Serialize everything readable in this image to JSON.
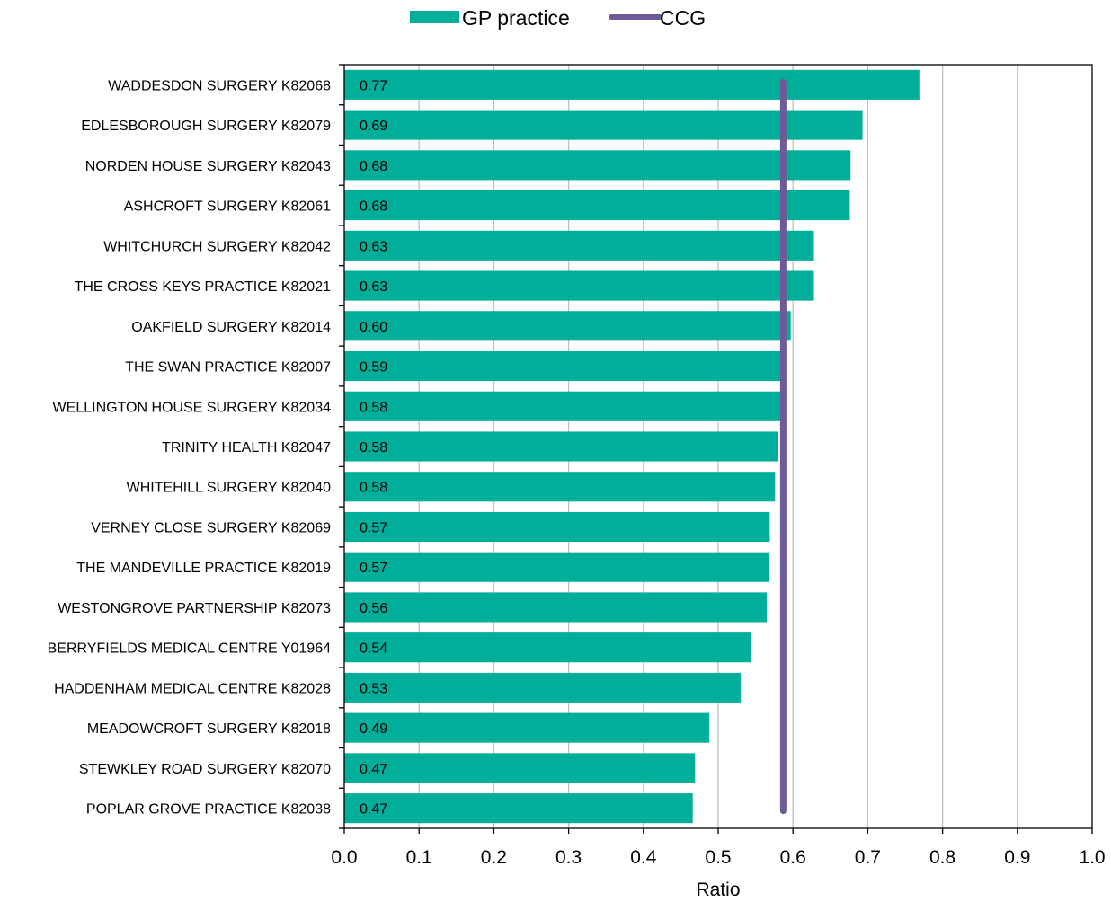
{
  "colors": {
    "bar": "#00ae9a",
    "ccg_line": "#6e5a99",
    "grid": "#bfbfbf",
    "axis": "#000000"
  },
  "legend": {
    "items": [
      {
        "label": "GP practice",
        "swatch": "bar"
      },
      {
        "label": "CCG",
        "swatch": "line"
      }
    ]
  },
  "chart_data": {
    "type": "bar",
    "orientation": "horizontal",
    "xlabel": "Ratio",
    "xlim": [
      0.0,
      1.0
    ],
    "ticks": [
      "0.0",
      "0.1",
      "0.2",
      "0.3",
      "0.4",
      "0.5",
      "0.6",
      "0.7",
      "0.8",
      "0.9",
      "1.0"
    ],
    "grid": "vertical",
    "legend_position": "top",
    "categories": [
      "WADDESDON SURGERY K82068",
      "EDLESBOROUGH SURGERY K82079",
      "NORDEN HOUSE SURGERY K82043",
      "ASHCROFT SURGERY K82061",
      "WHITCHURCH SURGERY K82042",
      "THE CROSS KEYS PRACTICE K82021",
      "OAKFIELD SURGERY K82014",
      "THE SWAN PRACTICE K82007",
      "WELLINGTON HOUSE SURGERY K82034",
      "TRINITY HEALTH K82047",
      "WHITEHILL SURGERY K82040",
      "VERNEY CLOSE SURGERY K82069",
      "THE MANDEVILLE PRACTICE K82019",
      "WESTONGROVE PARTNERSHIP K82073",
      "BERRYFIELDS MEDICAL CENTRE Y01964",
      "HADDENHAM MEDICAL CENTRE K82028",
      "MEADOWCROFT SURGERY K82018",
      "STEWKLEY ROAD SURGERY K82070",
      "POPLAR GROVE PRACTICE K82038"
    ],
    "series": [
      {
        "name": "GP practice",
        "values": [
          0.769,
          0.693,
          0.677,
          0.676,
          0.628,
          0.628,
          0.597,
          0.587,
          0.583,
          0.58,
          0.576,
          0.569,
          0.568,
          0.565,
          0.544,
          0.53,
          0.488,
          0.469,
          0.466
        ],
        "labels": [
          "0.77",
          "0.69",
          "0.68",
          "0.68",
          "0.63",
          "0.63",
          "0.60",
          "0.59",
          "0.58",
          "0.58",
          "0.58",
          "0.57",
          "0.57",
          "0.56",
          "0.54",
          "0.53",
          "0.49",
          "0.47",
          "0.47"
        ]
      },
      {
        "name": "CCG",
        "value": 0.587
      }
    ]
  }
}
